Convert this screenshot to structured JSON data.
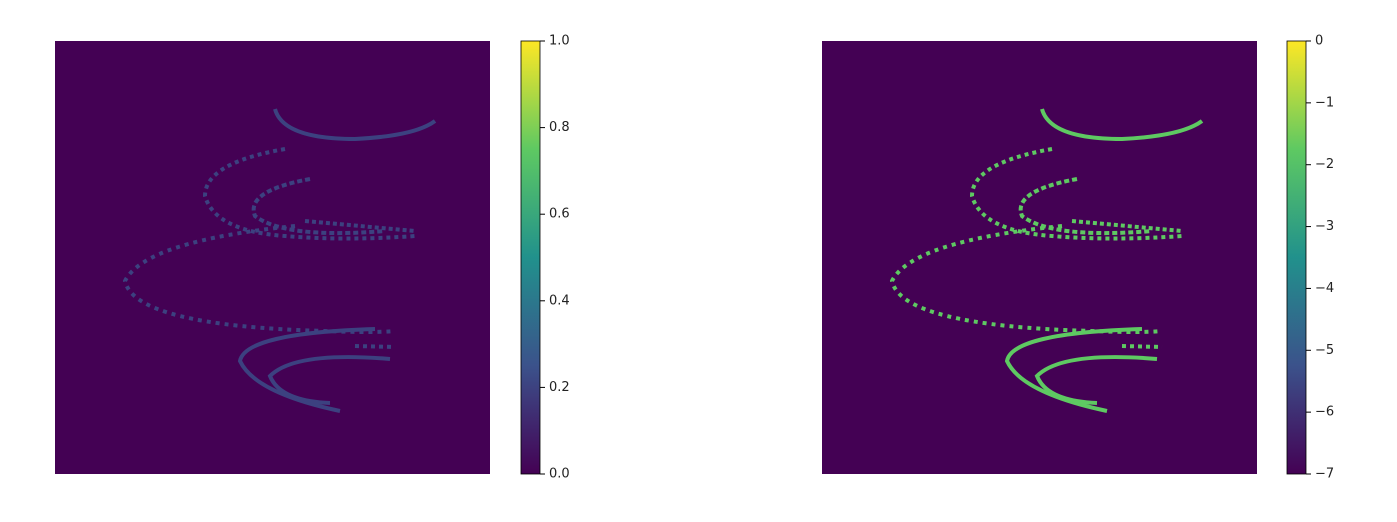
{
  "chart_data": [
    {
      "type": "heatmap",
      "colormap": [
        "#440154",
        "#3b528b",
        "#21918c",
        "#5ec962",
        "#fde725"
      ],
      "clim": [
        0,
        1
      ],
      "cticks": [
        {
          "value": 0,
          "label": "0.0"
        },
        0.2,
        0.4,
        0.6,
        0.8,
        {
          "value": 1,
          "label": "1.0"
        }
      ]
    },
    {
      "type": "heatmap",
      "colormap": [
        "#440154",
        "#3b528b",
        "#21918c",
        "#5ec962",
        "#fde725"
      ],
      "clim": [
        -7,
        0
      ],
      "cticks": [
        0,
        {
          "value": -1,
          "label": "−1"
        },
        {
          "value": -2,
          "label": "−2"
        },
        {
          "value": -3,
          "label": "−3"
        },
        {
          "value": -4,
          "label": "−4"
        },
        {
          "value": -5,
          "label": "−5"
        },
        {
          "value": -6,
          "label": "−6"
        },
        {
          "value": -7,
          "label": "−7"
        }
      ]
    }
  ]
}
